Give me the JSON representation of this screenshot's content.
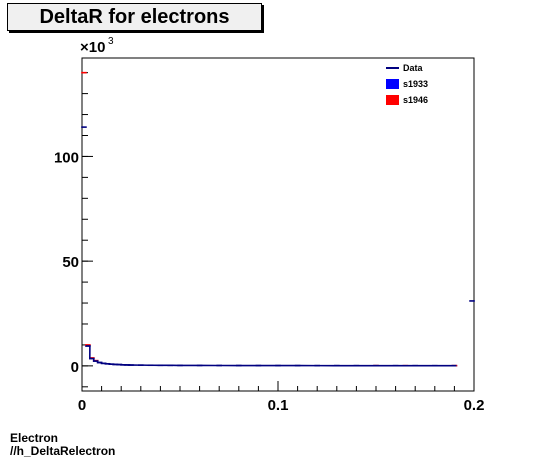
{
  "title": "DeltaR for electrons",
  "footer": {
    "line1": "Electron",
    "line2": "//h_DeltaRelectron"
  },
  "chart_data": {
    "type": "line",
    "title": "DeltaR for electrons",
    "xlabel": "",
    "ylabel": "",
    "y_multiplier": "×10^3",
    "y_exponent": "3",
    "xlim": [
      0,
      0.2
    ],
    "ylim": [
      -12,
      147
    ],
    "x_ticks": [
      0,
      0.1,
      0.2
    ],
    "x_tick_labels": [
      "0",
      "0.1",
      "0.2"
    ],
    "y_ticks": [
      0,
      50,
      100
    ],
    "y_tick_labels": [
      "0",
      "50",
      "100"
    ],
    "legend": {
      "placement": "top-right",
      "entries": [
        {
          "label": "Data",
          "color": "#000080",
          "style": "line"
        },
        {
          "label": "s1933",
          "color": "#0000ff",
          "style": "box"
        },
        {
          "label": "s1946",
          "color": "#ff0000",
          "style": "box"
        }
      ]
    },
    "series": [
      {
        "name": "Data",
        "color": "#000080",
        "x": [
          0.001,
          0.003,
          0.005,
          0.007,
          0.009,
          0.011,
          0.013,
          0.015,
          0.017,
          0.019,
          0.021,
          0.023,
          0.025,
          0.03,
          0.035,
          0.04,
          0.045,
          0.05,
          0.06,
          0.07,
          0.08,
          0.09,
          0.1,
          0.11,
          0.12,
          0.13,
          0.14,
          0.15,
          0.16,
          0.17,
          0.18,
          0.19,
          0.199
        ],
        "y": [
          114,
          9.5,
          3.5,
          2.3,
          1.6,
          1.2,
          1.0,
          0.8,
          0.7,
          0.6,
          0.5,
          0.45,
          0.4,
          0.35,
          0.3,
          0.28,
          0.25,
          0.22,
          0.2,
          0.18,
          0.16,
          0.15,
          0.14,
          0.13,
          0.12,
          0.11,
          0.1,
          0.1,
          0.09,
          0.09,
          0.08,
          0.08,
          31
        ]
      },
      {
        "name": "s1946",
        "color": "#ff0000",
        "x": [
          0.001,
          0.003,
          0.005,
          0.007,
          0.15,
          0.165,
          0.19
        ],
        "y": [
          140,
          10,
          3.8,
          2.5,
          0.1,
          0.1,
          0.1
        ]
      }
    ]
  }
}
